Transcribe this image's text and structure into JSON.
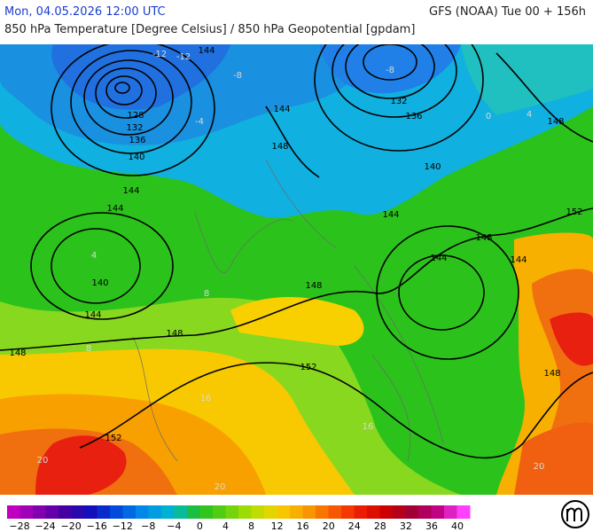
{
  "header": {
    "left": "Mon, 04.05.2026 12:00 UTC",
    "right": "GFS (NOAA) Tue 00 + 156h",
    "subtitle": "850 hPa Temperature [Degree Celsius] / 850 hPa Geopotential [gpdam]"
  },
  "contour_labels": [
    "128",
    "132",
    "136",
    "140",
    "144",
    "144",
    "140",
    "144",
    "148",
    "148",
    "148",
    "152",
    "152",
    "144",
    "144",
    "148",
    "132",
    "136",
    "140",
    "144",
    "148",
    "144",
    "144",
    "152",
    "148",
    "148"
  ],
  "temperature_labels": [
    "-12",
    "-12",
    "-8",
    "-8",
    "-4",
    "0",
    "4",
    "4",
    "8",
    "8",
    "16",
    "16",
    "20",
    "20",
    "20"
  ],
  "legend": {
    "labels": [
      "−28",
      "−24",
      "−20",
      "−16",
      "−12",
      "−8",
      "−4",
      "0",
      "4",
      "8",
      "12",
      "16",
      "20",
      "24",
      "28",
      "32",
      "36",
      "40"
    ]
  }
}
